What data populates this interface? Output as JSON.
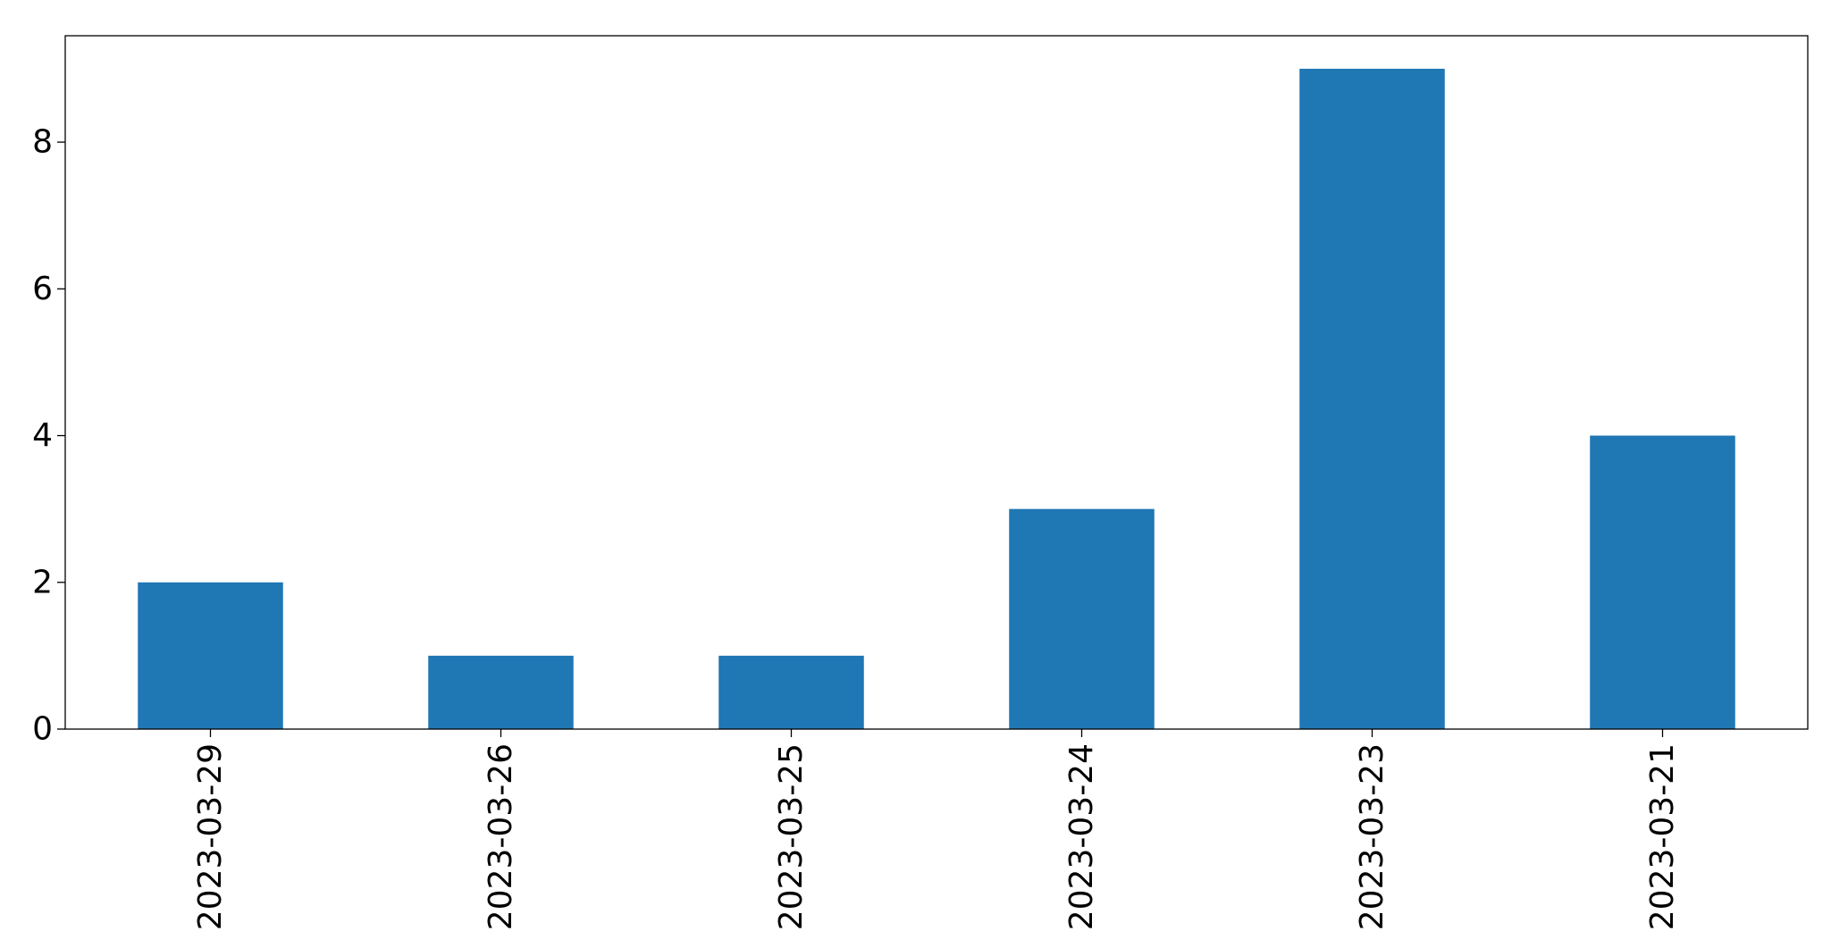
{
  "chart_data": {
    "type": "bar",
    "categories": [
      "2023-03-29",
      "2023-03-26",
      "2023-03-25",
      "2023-03-24",
      "2023-03-23",
      "2023-03-21"
    ],
    "values": [
      2,
      1,
      1,
      3,
      9,
      4
    ],
    "title": "",
    "xlabel": "",
    "ylabel": "",
    "ylim": [
      0,
      9.45
    ],
    "yticks": [
      0,
      2,
      4,
      6,
      8
    ],
    "bar_color": "#1f77b4",
    "grid": false,
    "legend": "none",
    "xtick_rotation": "vertical"
  }
}
